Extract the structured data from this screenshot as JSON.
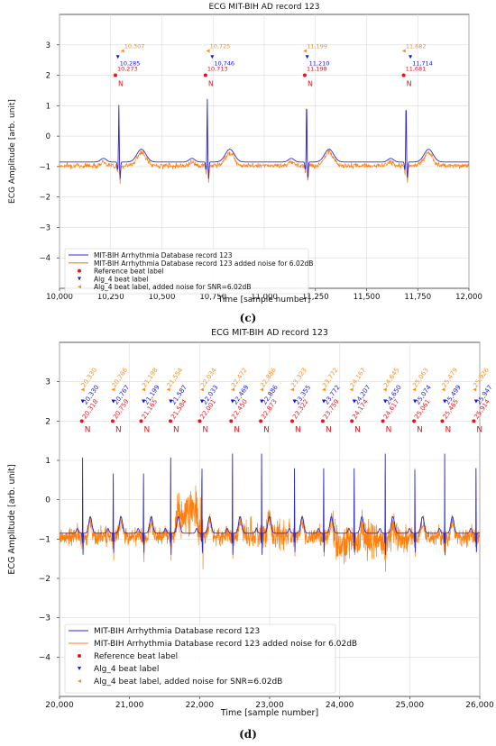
{
  "captions": {
    "c": "(c)",
    "d": "(d)"
  },
  "colors": {
    "ref": "#e8141b",
    "alg": "#1616d8",
    "noisy": "#ff8c1a",
    "clean": "#2b2bd6",
    "noise_line": "#ff7f0e"
  },
  "chart_data": [
    {
      "type": "line",
      "title": "ECG MIT-BIH AD record 123",
      "xlabel": "Time [sample number]",
      "ylabel": "ECG Amplitude [arb. unit]",
      "xlim": [
        10000,
        12000
      ],
      "ylim": [
        -5,
        4
      ],
      "x_ticks": [
        "10,000",
        "10,250",
        "10,500",
        "10,750",
        "11,000",
        "11,250",
        "11,500",
        "11,750",
        "12,000"
      ],
      "x_tick_values": [
        10000,
        10250,
        10500,
        10750,
        11000,
        11250,
        11500,
        11750,
        12000
      ],
      "y_ticks": [
        "3",
        "2",
        "1",
        "0",
        "−1",
        "−2",
        "−3",
        "−4"
      ],
      "y_tick_values": [
        3,
        2,
        1,
        0,
        -1,
        -2,
        -3,
        -4
      ],
      "grid": true,
      "legend_position": "bottom-left",
      "legend": [
        "MIT-BIH Arrhythmia Database record 123",
        "MIT-BIH Arrhythmia Database record 123 added noise for 6.02dB",
        "Reference beat label",
        "Alg_4 beat label",
        "Alg_4 beat label, added noise for SNR=6.02dB"
      ],
      "noise_amplitude": 0.08,
      "beat_label": "N",
      "ref_beats": {
        "x": [
          10273,
          10713,
          11198,
          11681
        ],
        "y": 2.0,
        "labels": [
          "10,273",
          "10,713",
          "11,198",
          "11,681"
        ]
      },
      "alg_beats": {
        "x": [
          10285,
          10746,
          11210,
          11714
        ],
        "y": 2.6,
        "labels": [
          "10,285",
          "10,746",
          "11,210",
          "11,714"
        ]
      },
      "noisy_beats": {
        "x": [
          10307,
          10725,
          11199,
          11682
        ],
        "y": 2.8,
        "labels": [
          "10,307",
          "10,725",
          "11,199",
          "11,682"
        ]
      },
      "r_peaks": [
        10290,
        10722,
        11207,
        11693
      ],
      "r_heights": [
        1.05,
        1.25,
        1.3,
        1.25
      ]
    },
    {
      "type": "line",
      "title": "ECG MIT-BIH AD record 123",
      "xlabel": "Time [sample number]",
      "ylabel": "ECG Amplitude [arb. unit]",
      "xlim": [
        20000,
        26000
      ],
      "ylim": [
        -5,
        4
      ],
      "x_ticks": [
        "20,000",
        "21,000",
        "22,000",
        "23,000",
        "24,000",
        "25,000",
        "26,000"
      ],
      "x_tick_values": [
        20000,
        21000,
        22000,
        23000,
        24000,
        25000,
        26000
      ],
      "y_ticks": [
        "3",
        "2",
        "1",
        "0",
        "−1",
        "−2",
        "−3",
        "−4"
      ],
      "y_tick_values": [
        3,
        2,
        1,
        0,
        -1,
        -2,
        -3,
        -4
      ],
      "grid": true,
      "legend_position": "bottom-left",
      "legend": [
        "MIT-BIH Arrhythmia Database record 123",
        "MIT-BIH Arrhythmia Database record 123 added noise for 6.02dB",
        "Reference beat label",
        "Alg_4 beat label",
        "Alg_4 beat label, added noise for SNR=6.02dB"
      ],
      "noise_amplitude": 0.25,
      "beat_label": "N",
      "ref_beats": {
        "x": [
          20318,
          20759,
          21165,
          21584,
          22001,
          22450,
          22873,
          23322,
          23759,
          24174,
          24617,
          25061,
          25465,
          25914
        ],
        "y": 2.0,
        "labels": [
          "20,318",
          "20,759",
          "21,165",
          "21,584",
          "22,001",
          "22,450",
          "22,873",
          "23,322",
          "23,759",
          "24,174",
          "24,617",
          "25,061",
          "25,465",
          "25,914"
        ]
      },
      "alg_beats": {
        "x": [
          20330,
          20767,
          21199,
          21587,
          22033,
          22469,
          22886,
          23355,
          23772,
          24207,
          24650,
          25074,
          25499,
          25947
        ],
        "y": 2.5,
        "labels": [
          "20,330",
          "20,767",
          "21,199",
          "21,587",
          "22,033",
          "22,469",
          "22,886",
          "23,355",
          "23,772",
          "24,207",
          "24,650",
          "25,074",
          "25,499",
          "25,947"
        ]
      },
      "noisy_beats": {
        "x": [
          20330,
          20766,
          21198,
          21554,
          22034,
          22472,
          22886,
          23323,
          23772,
          24167,
          24645,
          25063,
          25479,
          25926
        ],
        "y": 2.8,
        "labels": [
          "20,330",
          "20,766",
          "21,198",
          "21,554",
          "22,034",
          "22,472",
          "22,886",
          "23,323",
          "23,772",
          "24,167",
          "24,645",
          "25,063",
          "25,479",
          "25,926"
        ]
      },
      "r_peaks": [
        20330,
        20767,
        21199,
        21587,
        22033,
        22469,
        22886,
        23355,
        23772,
        24207,
        24650,
        25074,
        25499,
        25947
      ],
      "r_heights": [
        1.1,
        1.05,
        1.05,
        1.1,
        1.2,
        1.2,
        1.2,
        1.2,
        1.2,
        1.2,
        1.2,
        1.15,
        1.2,
        1.2
      ]
    }
  ]
}
